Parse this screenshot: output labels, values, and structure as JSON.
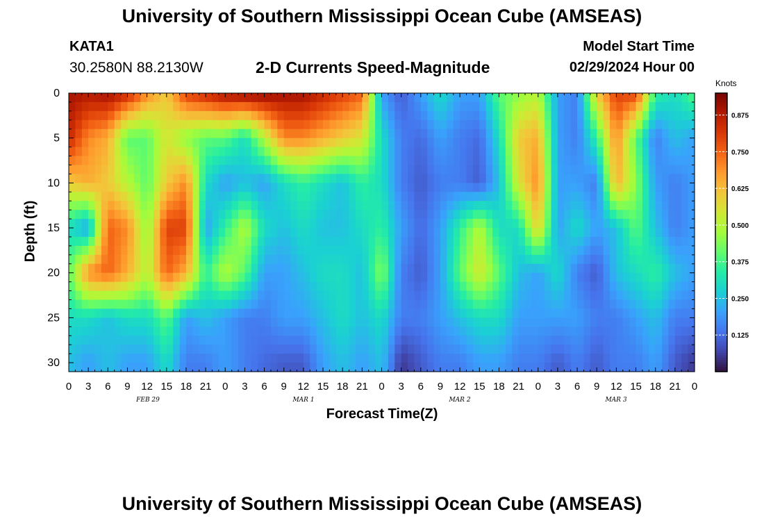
{
  "header": {
    "title": "University of Southern Mississippi Ocean Cube (AMSEAS)",
    "station_id": "KATA1",
    "coordinates": "30.2580N  88.2130W",
    "model_start_label": "Model Start Time",
    "model_start_value": "02/29/2024 Hour 00"
  },
  "footer": {
    "title": "University of Southern Mississippi Ocean Cube (AMSEAS)"
  },
  "colors": {
    "colormap": [
      "#30123b",
      "#4145ab",
      "#4675ed",
      "#39a2fc",
      "#1bcfd4",
      "#24eca6",
      "#61fc6c",
      "#a4fc3b",
      "#d1e834",
      "#f3c63a",
      "#fe9b2d",
      "#f36315",
      "#d93806",
      "#b11901",
      "#7a0402"
    ]
  },
  "chart_data": {
    "type": "heatmap",
    "title": "2-D Currents Speed-Magnitude",
    "xlabel": "Forecast Time(Z)",
    "ylabel": "Depth (ft)",
    "colorbar_label": "Knots",
    "colorbar_ticks": [
      "0.125",
      "0.250",
      "0.375",
      "0.500",
      "0.625",
      "0.750",
      "0.875"
    ],
    "colorbar_values": [
      0.125,
      0.25,
      0.375,
      0.5,
      0.625,
      0.75,
      0.875
    ],
    "vlim": [
      0.0,
      0.95
    ],
    "ylim": [
      0,
      31
    ],
    "y_ticks": [
      "0",
      "5",
      "10",
      "15",
      "20",
      "25",
      "30"
    ],
    "y_tick_values": [
      0,
      5,
      10,
      15,
      20,
      25,
      30
    ],
    "xlim_hours": [
      0,
      96
    ],
    "x_tick_labels": [
      "0",
      "3",
      "6",
      "9",
      "12",
      "15",
      "18",
      "21",
      "0",
      "3",
      "6",
      "9",
      "12",
      "15",
      "18",
      "21",
      "0",
      "3",
      "6",
      "9",
      "12",
      "15",
      "18",
      "21",
      "0",
      "3",
      "6",
      "9",
      "12",
      "15",
      "18",
      "21",
      "0"
    ],
    "date_labels": [
      {
        "text": "FEB 29",
        "hour": 12
      },
      {
        "text": "MAR 1",
        "hour": 36
      },
      {
        "text": "MAR 2",
        "hour": 60
      },
      {
        "text": "MAR 3",
        "hour": 84
      }
    ],
    "hours": [
      0,
      3,
      6,
      9,
      12,
      15,
      18,
      21,
      24,
      27,
      30,
      33,
      36,
      39,
      42,
      45,
      48,
      51,
      54,
      57,
      60,
      63,
      66,
      69,
      72,
      75,
      78,
      81,
      84,
      87,
      90,
      93,
      96
    ],
    "depths": [
      0,
      5,
      10,
      15,
      20,
      25,
      30
    ],
    "values": [
      [
        0.9,
        0.88,
        0.9,
        0.85,
        0.7,
        0.6,
        0.8,
        0.85,
        0.9,
        0.92,
        0.92,
        0.9,
        0.9,
        0.85,
        0.8,
        0.75,
        0.2,
        0.1,
        0.2,
        0.3,
        0.2,
        0.2,
        0.4,
        0.45,
        0.5,
        0.2,
        0.15,
        0.6,
        0.8,
        0.8,
        0.35,
        0.3,
        0.4
      ],
      [
        0.85,
        0.7,
        0.65,
        0.4,
        0.4,
        0.55,
        0.45,
        0.4,
        0.4,
        0.3,
        0.5,
        0.7,
        0.7,
        0.65,
        0.6,
        0.55,
        0.3,
        0.15,
        0.12,
        0.2,
        0.15,
        0.12,
        0.3,
        0.6,
        0.65,
        0.2,
        0.15,
        0.35,
        0.7,
        0.4,
        0.15,
        0.25,
        0.2
      ],
      [
        0.6,
        0.65,
        0.6,
        0.5,
        0.4,
        0.6,
        0.7,
        0.3,
        0.2,
        0.25,
        0.2,
        0.3,
        0.35,
        0.3,
        0.25,
        0.35,
        0.3,
        0.15,
        0.1,
        0.15,
        0.15,
        0.1,
        0.25,
        0.55,
        0.7,
        0.2,
        0.2,
        0.15,
        0.65,
        0.45,
        0.2,
        0.15,
        0.2
      ],
      [
        0.3,
        0.2,
        0.75,
        0.7,
        0.45,
        0.8,
        0.8,
        0.2,
        0.35,
        0.5,
        0.3,
        0.25,
        0.3,
        0.25,
        0.25,
        0.3,
        0.35,
        0.2,
        0.12,
        0.2,
        0.35,
        0.5,
        0.3,
        0.3,
        0.6,
        0.2,
        0.3,
        0.2,
        0.25,
        0.4,
        0.25,
        0.15,
        0.2
      ],
      [
        0.4,
        0.7,
        0.75,
        0.65,
        0.5,
        0.75,
        0.65,
        0.35,
        0.5,
        0.4,
        0.2,
        0.2,
        0.25,
        0.3,
        0.3,
        0.25,
        0.45,
        0.15,
        0.1,
        0.2,
        0.4,
        0.55,
        0.4,
        0.25,
        0.2,
        0.3,
        0.15,
        0.1,
        0.25,
        0.3,
        0.35,
        0.25,
        0.2
      ],
      [
        0.3,
        0.3,
        0.25,
        0.3,
        0.3,
        0.4,
        0.2,
        0.25,
        0.2,
        0.15,
        0.15,
        0.2,
        0.2,
        0.25,
        0.3,
        0.25,
        0.3,
        0.15,
        0.15,
        0.2,
        0.25,
        0.3,
        0.3,
        0.2,
        0.2,
        0.2,
        0.2,
        0.15,
        0.15,
        0.2,
        0.25,
        0.15,
        0.15
      ],
      [
        0.25,
        0.2,
        0.25,
        0.2,
        0.2,
        0.3,
        0.15,
        0.15,
        0.2,
        0.15,
        0.12,
        0.1,
        0.1,
        0.2,
        0.25,
        0.2,
        0.25,
        0.05,
        0.1,
        0.15,
        0.15,
        0.2,
        0.2,
        0.15,
        0.15,
        0.1,
        0.15,
        0.1,
        0.15,
        0.15,
        0.2,
        0.1,
        0.05
      ]
    ]
  }
}
